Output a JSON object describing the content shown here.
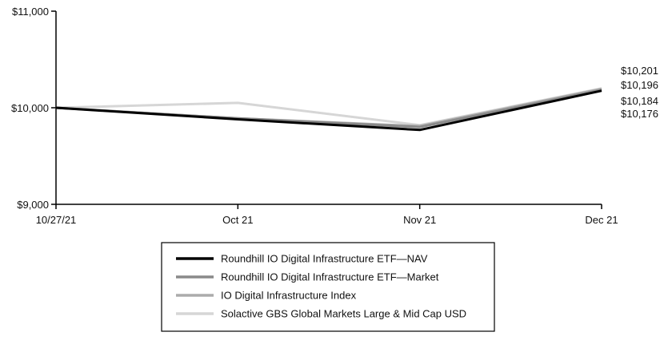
{
  "chart_data": {
    "type": "line",
    "x": [
      "10/27/21",
      "Oct 21",
      "Nov 21",
      "Dec 21"
    ],
    "ylim": [
      9000,
      11000
    ],
    "y_ticks": [
      "$9,000",
      "$10,000",
      "$11,000"
    ],
    "grid": false,
    "legend_position": "bottom",
    "series": [
      {
        "name": "Roundhill IO Digital Infrastructure ETF—NAV",
        "values": [
          10000,
          9880,
          9770,
          10176
        ],
        "color": "#000000"
      },
      {
        "name": "Roundhill IO Digital Infrastructure ETF—Market",
        "values": [
          10000,
          9890,
          9800,
          10184
        ],
        "color": "#8a8a8a"
      },
      {
        "name": "IO Digital Infrastructure Index",
        "values": [
          10000,
          9890,
          9810,
          10196
        ],
        "color": "#ababab"
      },
      {
        "name": "Solactive GBS Global Markets Large & Mid Cap USD",
        "values": [
          10000,
          10050,
          9820,
          10201
        ],
        "color": "#d6d6d6"
      }
    ],
    "end_labels": [
      "$10,201",
      "$10,196",
      "$10,184",
      "$10,176"
    ]
  }
}
